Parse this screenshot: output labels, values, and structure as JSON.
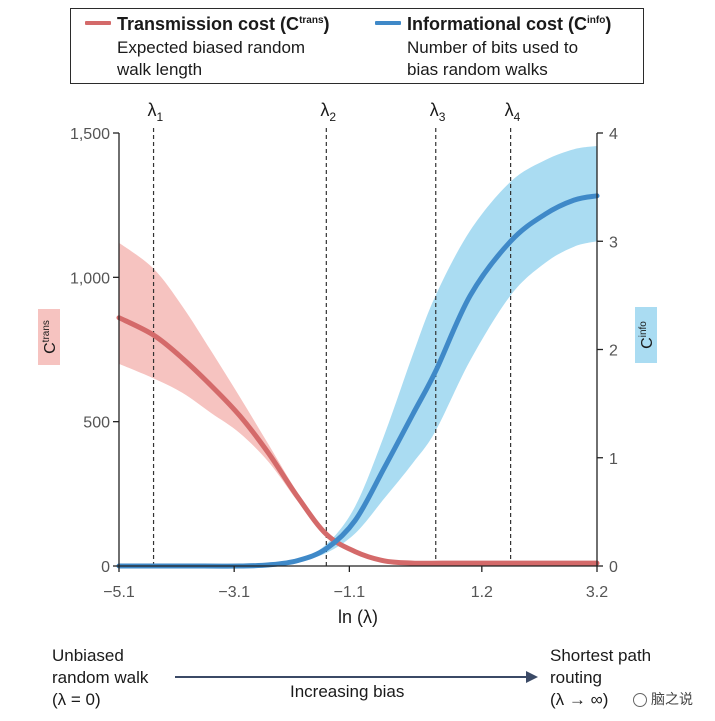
{
  "legend": {
    "trans_title": "Transmission cost (C",
    "trans_sup": "trans",
    "trans_close": ")",
    "trans_desc_1": "Expected biased random",
    "trans_desc_2": "walk length",
    "info_title": "Informational cost (C",
    "info_sup": "info",
    "info_close": ")",
    "info_desc_1": "Number of bits used to",
    "info_desc_2": "bias random walks"
  },
  "bottom": {
    "left_1": "Unbiased",
    "left_2": "random walk",
    "left_3": "(λ = 0)",
    "center": "Increasing bias",
    "right_1": "Shortest path",
    "right_2": "routing",
    "right_3": "(λ → ∞)"
  },
  "watermark": "脑之说",
  "colors": {
    "trans_line": "#d46a6a",
    "trans_band": "#f6c3c0",
    "info_line": "#3f89c8",
    "info_band": "#aadcf2",
    "trans_label_bg": "#f6c3c0",
    "info_label_bg": "#aadcf2",
    "arrow": "#3b4a66"
  },
  "chart_data": {
    "type": "line",
    "xlabel": "ln (λ)",
    "ylabel_left": "C",
    "ylabel_left_sup": "trans",
    "ylabel_right": "C",
    "ylabel_right_sup": "info",
    "xlim": [
      -5.1,
      3.2
    ],
    "ylim_left": [
      0,
      1500
    ],
    "ylim_right": [
      0,
      4
    ],
    "x_ticks": [
      -5.1,
      -3.1,
      -1.1,
      1.2,
      3.2
    ],
    "x_tick_labels": [
      "−5.1",
      "−3.1",
      "−1.1",
      "1.2",
      "3.2"
    ],
    "y_left_ticks": [
      0,
      500,
      1000,
      1500
    ],
    "y_left_tick_labels": [
      "0",
      "500",
      "1,000",
      "1,500"
    ],
    "y_right_ticks": [
      0,
      1,
      2,
      3,
      4
    ],
    "y_right_tick_labels": [
      "0",
      "1",
      "2",
      "3",
      "4"
    ],
    "vlines": [
      {
        "label": "λ",
        "sub": "1",
        "x": -4.5
      },
      {
        "label": "λ",
        "sub": "2",
        "x": -1.5
      },
      {
        "label": "λ",
        "sub": "3",
        "x": 0.4
      },
      {
        "label": "λ",
        "sub": "4",
        "x": 1.7
      }
    ],
    "series": [
      {
        "name": "Transmission cost",
        "axis": "left",
        "x": [
          -5.1,
          -4.5,
          -4.0,
          -3.5,
          -3.0,
          -2.5,
          -2.0,
          -1.5,
          -1.0,
          -0.5,
          0.0,
          0.5,
          1.0,
          2.0,
          3.2
        ],
        "y": [
          860,
          800,
          720,
          625,
          520,
          390,
          240,
          110,
          50,
          18,
          10,
          10,
          10,
          10,
          10
        ],
        "band_upper": [
          1120,
          1030,
          900,
          745,
          585,
          420,
          255,
          118,
          52,
          19,
          10,
          10,
          10,
          10,
          10
        ],
        "band_lower": [
          700,
          650,
          600,
          530,
          460,
          360,
          225,
          102,
          48,
          17,
          10,
          10,
          10,
          10,
          10
        ]
      },
      {
        "name": "Informational cost",
        "axis": "right",
        "x": [
          -5.1,
          -4.0,
          -3.0,
          -2.5,
          -2.0,
          -1.5,
          -1.0,
          -0.5,
          0.0,
          0.4,
          1.0,
          1.7,
          2.3,
          2.8,
          3.2
        ],
        "y": [
          0,
          0,
          0,
          0.01,
          0.05,
          0.16,
          0.42,
          0.9,
          1.4,
          1.8,
          2.5,
          3.0,
          3.25,
          3.38,
          3.42
        ],
        "band_upper": [
          0,
          0,
          0,
          0.01,
          0.06,
          0.2,
          0.55,
          1.2,
          1.95,
          2.5,
          3.1,
          3.55,
          3.75,
          3.85,
          3.88
        ],
        "band_lower": [
          0,
          0,
          0,
          0.01,
          0.04,
          0.12,
          0.3,
          0.62,
          0.95,
          1.25,
          1.9,
          2.5,
          2.8,
          2.95,
          3.0
        ]
      }
    ]
  }
}
